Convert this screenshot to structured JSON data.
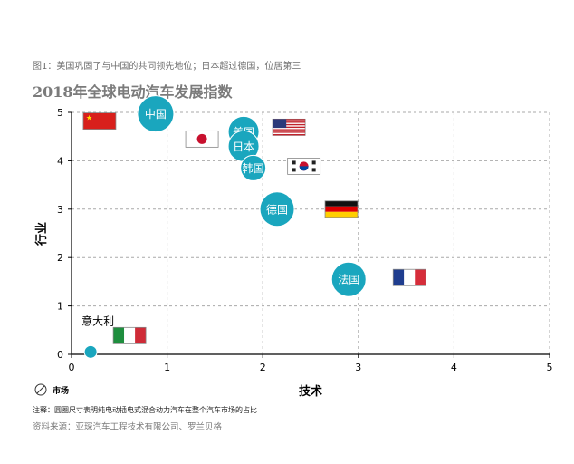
{
  "figure": {
    "caption": "图1：美国巩固了与中国的共同领先地位；日本超过德国，位居第三",
    "note": "注释：圆圈尺寸表明纯电动插电式混合动力汽车在整个汽车市场的占比",
    "source": "资料来源：亚琛汽车工程技术有限公司、罗兰贝格"
  },
  "colors": {
    "bubble": "#1aa6be",
    "grid": "#a9a9a9",
    "axis": "#000000"
  },
  "chart_data": {
    "type": "scatter",
    "title": "2018年全球电动汽车发展指数",
    "xlabel": "技术",
    "ylabel": "行业",
    "size_legend_label": "市场",
    "xlim": [
      0,
      5
    ],
    "ylim": [
      0,
      5
    ],
    "x_ticks": [
      "0",
      "1",
      "2",
      "3",
      "4",
      "5"
    ],
    "y_ticks": [
      "0",
      "1",
      "2",
      "3",
      "4",
      "5"
    ],
    "grid": true,
    "points": [
      {
        "label": "中国",
        "x": 0.88,
        "y": 4.97,
        "size": 20,
        "flag": "china-flag-icon"
      },
      {
        "label": "美国",
        "x": 1.8,
        "y": 4.6,
        "size": 17,
        "flag": "usa-flag-icon"
      },
      {
        "label": "日本",
        "x": 1.8,
        "y": 4.3,
        "size": 17,
        "flag": "japan-flag-icon"
      },
      {
        "label": "韩国",
        "x": 1.9,
        "y": 3.85,
        "size": 14,
        "flag": "korea-flag-icon"
      },
      {
        "label": "德国",
        "x": 2.15,
        "y": 3.0,
        "size": 19,
        "flag": "germany-flag-icon"
      },
      {
        "label": "法国",
        "x": 2.9,
        "y": 1.55,
        "size": 19,
        "flag": "france-flag-icon"
      },
      {
        "label": "意大利",
        "x": 0.2,
        "y": 0.05,
        "size": 7,
        "flag": "italy-flag-icon"
      }
    ]
  }
}
